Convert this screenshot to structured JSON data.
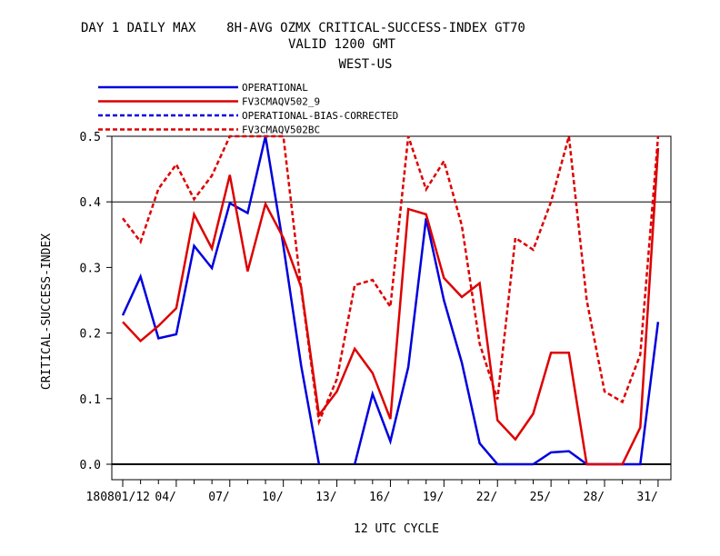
{
  "chart_data": {
    "type": "line",
    "title": "DAY 1 DAILY MAX    8H-AVG OZMX CRITICAL-SUCCESS-INDEX GT70",
    "subtitle_1": "VALID 1200 GMT",
    "subtitle_2": "WEST-US",
    "xlabel": "12 UTC CYCLE",
    "ylabel": "CRITICAL-SUCCESS-INDEX",
    "ylim": [
      0,
      0.5
    ],
    "yticks": [
      "0.0",
      "0.1",
      "0.2",
      "0.3",
      "0.4",
      "0.5"
    ],
    "xtick_labels": [
      {
        "day": 1,
        "label": "180801/12"
      },
      {
        "day": 4,
        "label": "04/"
      },
      {
        "day": 7,
        "label": "07/"
      },
      {
        "day": 10,
        "label": "10/"
      },
      {
        "day": 13,
        "label": "13/"
      },
      {
        "day": 16,
        "label": "16/"
      },
      {
        "day": 19,
        "label": "19/"
      },
      {
        "day": 22,
        "label": "22/"
      },
      {
        "day": 25,
        "label": "25/"
      },
      {
        "day": 28,
        "label": "28/"
      },
      {
        "day": 31,
        "label": "31/"
      }
    ],
    "reference_line": 0.4,
    "legend_position": "top-left",
    "series": [
      {
        "name": "OPERATIONAL",
        "color": "#0000dd",
        "style": "solid",
        "x": [
          1,
          2,
          3,
          4,
          5,
          6,
          7,
          8,
          9,
          10,
          11,
          12,
          13,
          14,
          15,
          16,
          17,
          18,
          19,
          20,
          21,
          22,
          23,
          24,
          25,
          26,
          27,
          28,
          29,
          30,
          31
        ],
        "values": [
          0.227,
          0.286,
          0.192,
          0.198,
          0.333,
          0.299,
          0.398,
          0.383,
          0.507,
          0.333,
          0.15,
          0.0,
          null,
          0.0,
          0.107,
          0.035,
          0.148,
          0.375,
          0.25,
          0.155,
          0.032,
          0.0,
          0.0,
          0.0,
          0.018,
          0.02,
          0.0,
          0.0,
          0.0,
          0.0,
          0.217
        ]
      },
      {
        "name": "FV3CMAQV502_9",
        "color": "#dd0000",
        "style": "solid",
        "x": [
          1,
          2,
          3,
          4,
          5,
          6,
          7,
          8,
          9,
          10,
          11,
          12,
          13,
          14,
          15,
          16,
          17,
          18,
          19,
          20,
          21,
          22,
          23,
          24,
          25,
          26,
          27,
          28,
          29,
          30,
          31
        ],
        "values": [
          0.217,
          0.188,
          0.211,
          0.238,
          0.381,
          0.329,
          0.441,
          0.294,
          0.397,
          0.345,
          0.27,
          0.075,
          0.111,
          0.176,
          0.139,
          0.069,
          0.389,
          0.381,
          0.284,
          0.255,
          0.276,
          0.067,
          0.038,
          0.077,
          0.17,
          0.17,
          0.0,
          0.0,
          0.0,
          0.056,
          0.482
        ]
      },
      {
        "name": "OPERATIONAL-BIAS-CORRECTED",
        "color": "#0000dd",
        "style": "dashed",
        "x": [],
        "values": []
      },
      {
        "name": "FV3CMAQV502BC",
        "color": "#dd0000",
        "style": "dashed",
        "x": [
          1,
          2,
          3,
          4,
          5,
          6,
          7,
          8,
          9,
          10,
          11,
          12,
          13,
          14,
          15,
          16,
          17,
          18,
          19,
          20,
          21,
          22,
          23,
          24,
          25,
          26,
          27,
          28,
          29,
          30,
          31
        ],
        "values": [
          0.375,
          0.339,
          0.42,
          0.457,
          0.404,
          0.44,
          0.52,
          0.52,
          0.52,
          0.52,
          0.267,
          0.065,
          0.13,
          0.273,
          0.281,
          0.24,
          0.5,
          0.419,
          0.462,
          0.364,
          0.184,
          0.099,
          0.345,
          0.327,
          0.4,
          0.51,
          0.25,
          0.111,
          0.095,
          0.167,
          0.52
        ]
      }
    ]
  }
}
